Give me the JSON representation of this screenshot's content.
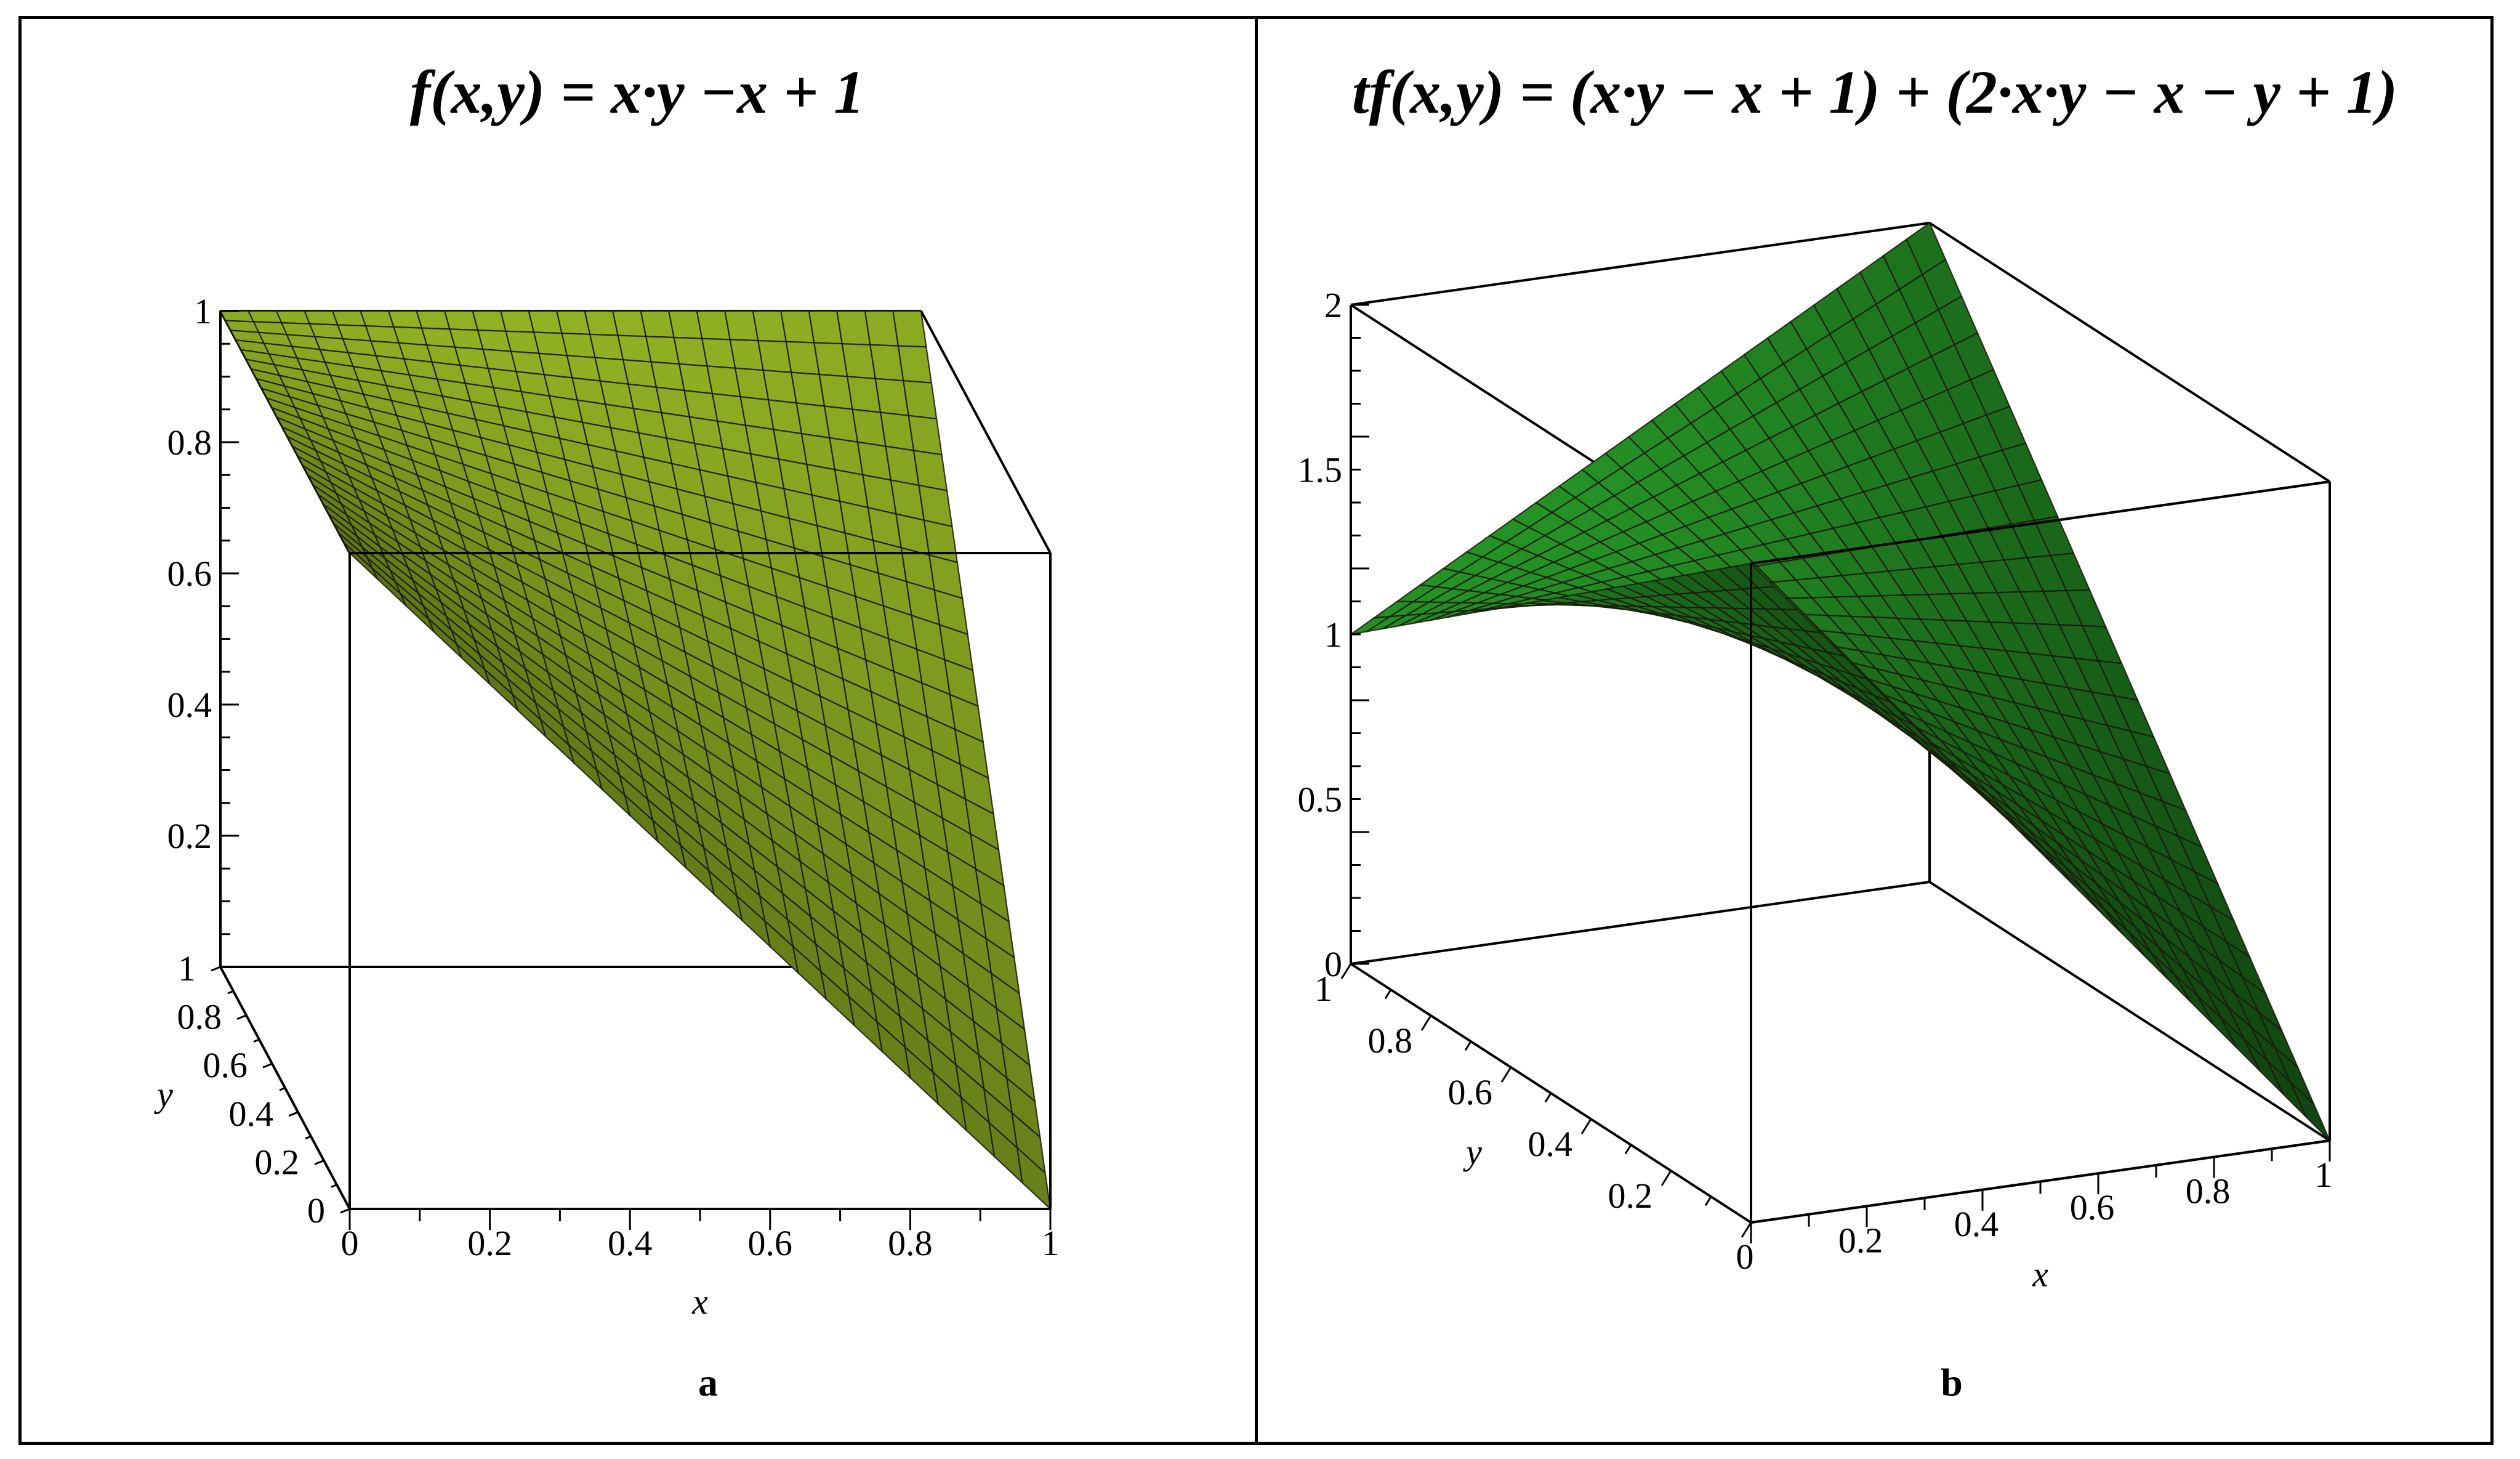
{
  "figure": {
    "panels": [
      {
        "id": "a",
        "title": "f(x,y) = x·y −x + 1",
        "label": "a"
      },
      {
        "id": "b",
        "title": "tf(x,y) = (x·y − x + 1) + (2·x·y − x − y + 1)",
        "label": "b"
      }
    ]
  },
  "chart_data": [
    {
      "type": "surface3d",
      "function": "x*y - x + 1",
      "title": "f(x,y) = x·y −x + 1",
      "xlabel": "x",
      "ylabel": "y",
      "zlabel": "",
      "xlim": [
        0,
        1
      ],
      "ylim": [
        0,
        1
      ],
      "zlim": [
        0,
        1
      ],
      "x_ticks": [
        "0",
        "0.2",
        "0.4",
        "0.6",
        "0.8",
        "1"
      ],
      "y_ticks": [
        "0",
        "0.2",
        "0.4",
        "0.6",
        "0.8",
        "1"
      ],
      "z_ticks": [
        "0.2",
        "0.4",
        "0.6",
        "0.8",
        "1"
      ],
      "grid_lines": 25,
      "surface_color": "#7f9b1f",
      "corner_values": [
        {
          "x": 0,
          "y": 0,
          "z": 1
        },
        {
          "x": 1,
          "y": 0,
          "z": 0
        },
        {
          "x": 0,
          "y": 1,
          "z": 1
        },
        {
          "x": 1,
          "y": 1,
          "z": 1
        }
      ]
    },
    {
      "type": "surface3d",
      "function": "(x*y - x + 1) + (2*x*y - x - y + 1)",
      "title": "tf(x,y) = (x·y − x + 1) + (2·x·y − x − y + 1)",
      "xlabel": "x",
      "ylabel": "y",
      "zlabel": "",
      "xlim": [
        0,
        1
      ],
      "ylim": [
        0,
        1
      ],
      "zlim": [
        0,
        2
      ],
      "x_ticks": [
        "0",
        "0.2",
        "0.4",
        "0.6",
        "0.8",
        "1"
      ],
      "y_ticks": [
        "0.2",
        "0.4",
        "0.6",
        "0.8",
        "1"
      ],
      "z_ticks": [
        "0",
        "0.5",
        "1",
        "1.5",
        "2"
      ],
      "grid_lines": 25,
      "surface_color": "#1f7a1f",
      "corner_values": [
        {
          "x": 0,
          "y": 0,
          "z": 2
        },
        {
          "x": 1,
          "y": 0,
          "z": 0
        },
        {
          "x": 0,
          "y": 1,
          "z": 1
        },
        {
          "x": 1,
          "y": 1,
          "z": 2
        }
      ]
    }
  ]
}
